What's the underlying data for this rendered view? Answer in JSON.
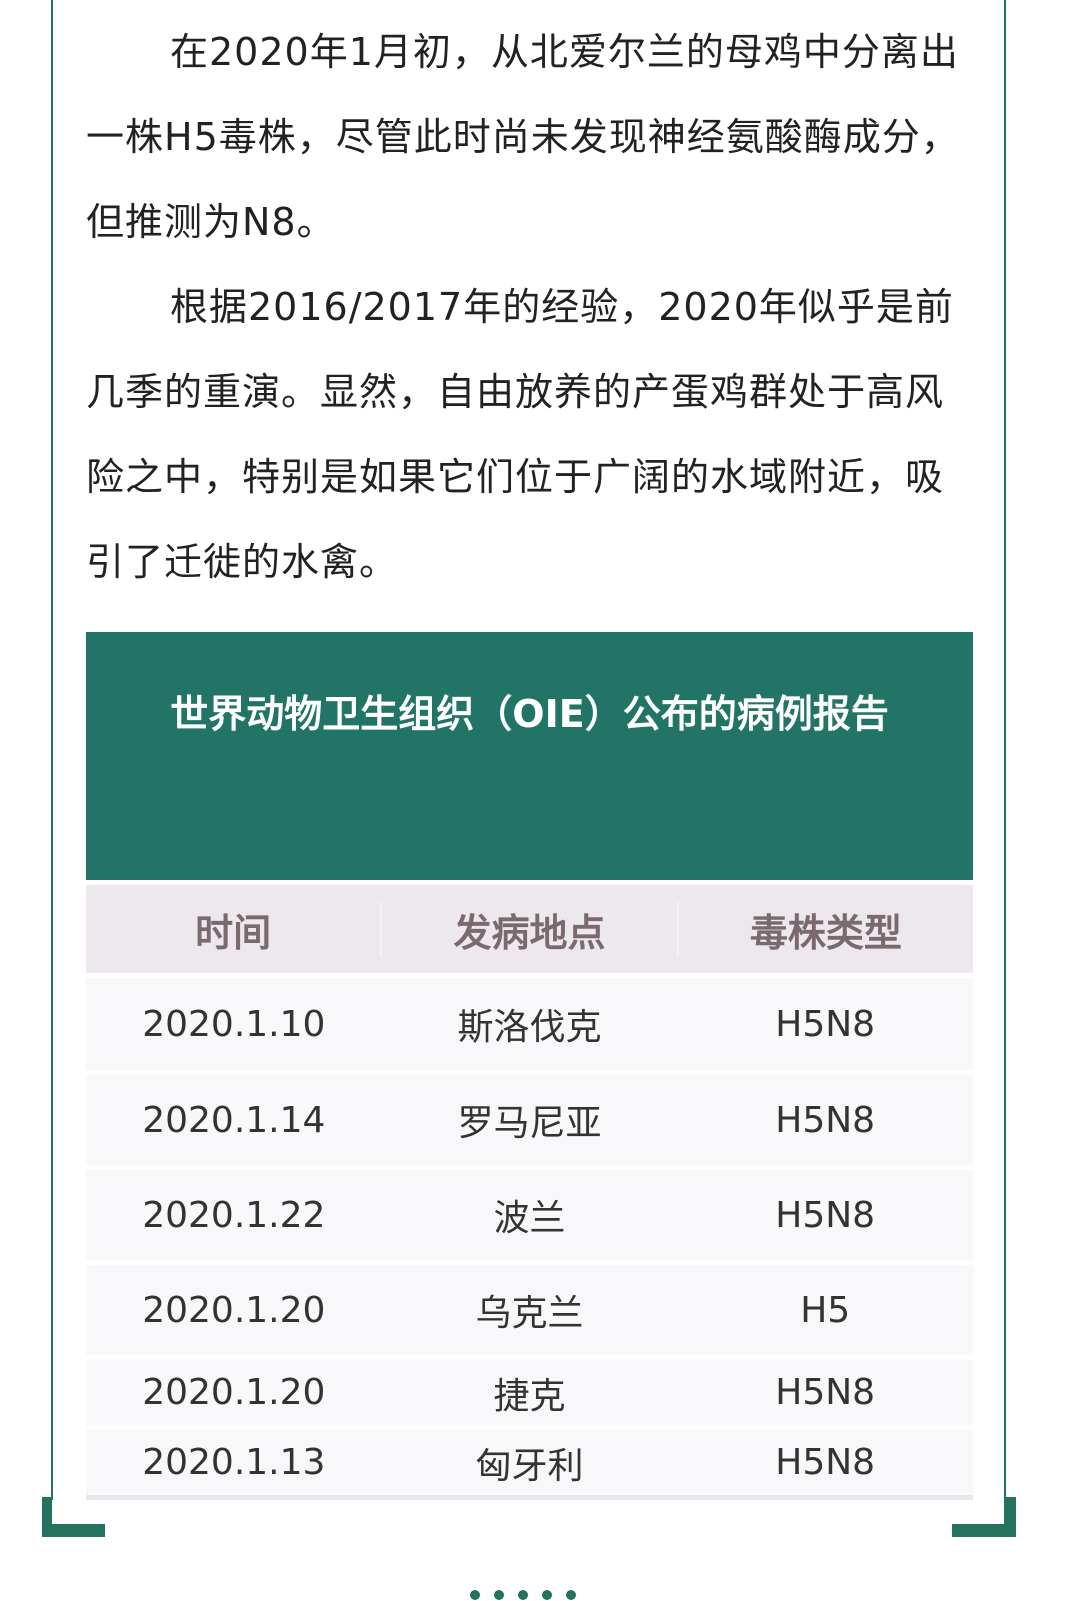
{
  "paragraphs": [
    "在2020年1月初，从北爱尔兰的母鸡中分离出一株H5毒株，尽管此时尚未发现神经氨酸酶成分，但推测为N8。",
    "根据2016/2017年的经验，2020年似乎是前几季的重演。显然，自由放养的产蛋鸡群处于高风险之中，特别是如果它们位于广阔的水域附近，吸引了迁徙的水禽。"
  ],
  "table": {
    "title": "世界动物卫生组织（OIE）公布的病例报告",
    "headers": [
      "时间",
      "发病地点",
      "毒株类型"
    ],
    "rows": [
      [
        "2020.1.10",
        "斯洛伐克",
        "H5N8"
      ],
      [
        "2020.1.14",
        "罗马尼亚",
        "H5N8"
      ],
      [
        "2020.1.22",
        "波兰",
        "H5N8"
      ],
      [
        "2020.1.20",
        "乌克兰",
        "H5"
      ],
      [
        "2020.1.20",
        "捷克",
        "H5N8"
      ],
      [
        "2020.1.13",
        "匈牙利",
        "H5N8"
      ]
    ]
  },
  "colors": {
    "accent": "#227466",
    "header_bg": "#ece8ee",
    "row_bg": "#f8f7fa"
  }
}
